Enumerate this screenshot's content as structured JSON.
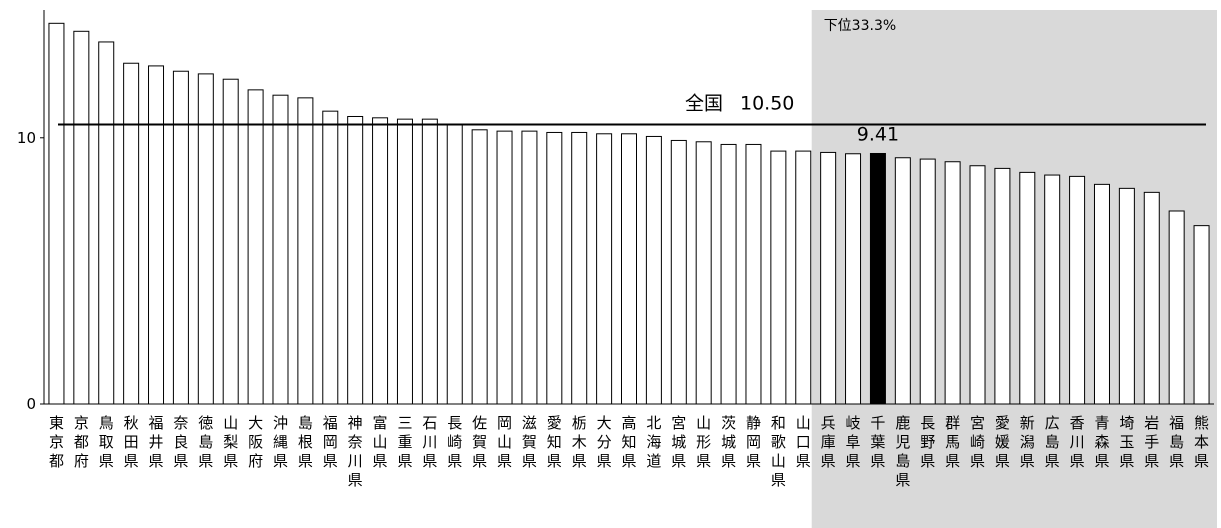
{
  "chart_data": {
    "type": "bar",
    "categories": [
      "東京都",
      "京都府",
      "鳥取県",
      "秋田県",
      "福井県",
      "奈良県",
      "徳島県",
      "山梨県",
      "大阪府",
      "沖縄県",
      "島根県",
      "福岡県",
      "神奈川県",
      "富山県",
      "三重県",
      "石川県",
      "長崎県",
      "佐賀県",
      "岡山県",
      "滋賀県",
      "愛知県",
      "栃木県",
      "大分県",
      "高知県",
      "北海道",
      "宮城県",
      "山形県",
      "茨城県",
      "静岡県",
      "和歌山県",
      "山口県",
      "兵庫県",
      "岐阜県",
      "千葉県",
      "鹿児島県",
      "長野県",
      "群馬県",
      "宮崎県",
      "愛媛県",
      "新潟県",
      "広島県",
      "香川県",
      "青森県",
      "埼玉県",
      "岩手県",
      "福島県",
      "熊本県"
    ],
    "values": [
      14.3,
      14.0,
      13.6,
      12.8,
      12.7,
      12.5,
      12.4,
      12.2,
      11.8,
      11.6,
      11.5,
      11.0,
      10.8,
      10.75,
      10.7,
      10.7,
      10.5,
      10.3,
      10.25,
      10.25,
      10.2,
      10.2,
      10.15,
      10.15,
      10.05,
      9.9,
      9.85,
      9.75,
      9.75,
      9.5,
      9.5,
      9.45,
      9.4,
      9.41,
      9.25,
      9.2,
      9.1,
      8.95,
      8.85,
      8.7,
      8.6,
      8.55,
      8.25,
      8.1,
      7.95,
      7.25,
      6.7
    ],
    "highlight_index": 33,
    "highlight_label": "9.41",
    "highlight_color": "#000000",
    "bar_fill": "#ffffff",
    "bar_stroke": "#000000",
    "yticks": [
      0,
      10
    ],
    "ylim": [
      0,
      14.8
    ],
    "reference_line": {
      "label": "全国",
      "value_text": "10.50",
      "value": 10.5
    },
    "shaded_region": {
      "label": "下位33.3%",
      "start_index": 31,
      "end_index": 46,
      "color": "#d9d9d9"
    },
    "grid": false,
    "legend": "none",
    "title": "",
    "xlabel": "",
    "ylabel": ""
  }
}
